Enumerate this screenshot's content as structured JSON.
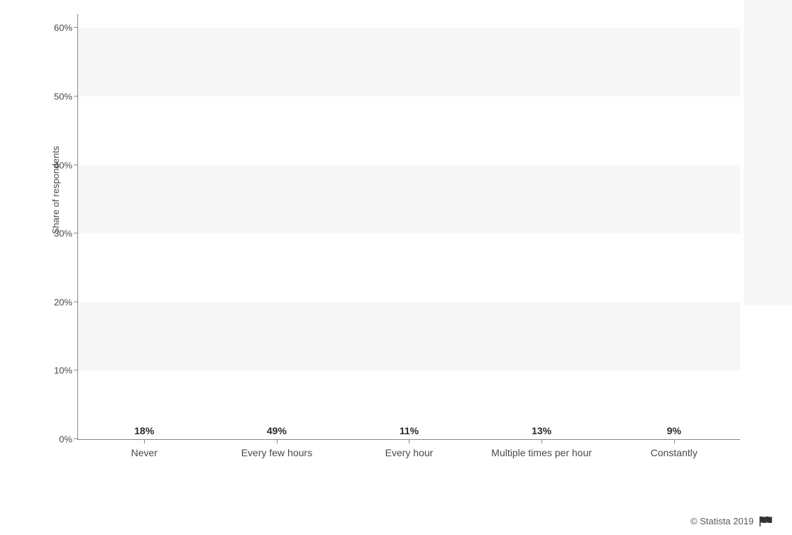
{
  "chart": {
    "type": "bar",
    "y_axis_label": "Share of respondents",
    "y_axis_label_fontsize": 13,
    "value_label_fontsize": 14,
    "x_label_fontsize": 14,
    "background_color": "#ffffff",
    "stripe_color": "#f7f7f7",
    "axis_color": "#888888",
    "text_color": "#4a4a4a",
    "value_text_color": "#2a2a2a",
    "ylim": [
      0,
      62
    ],
    "ytick_step": 10,
    "yticks": [
      "0%",
      "10%",
      "20%",
      "30%",
      "40%",
      "50%",
      "60%"
    ],
    "bar_color": "#2467d3",
    "bar_width_pct": 76,
    "categories": [
      "Never",
      "Every few hours",
      "Every hour",
      "Multiple times per hour",
      "Constantly"
    ],
    "values": [
      18,
      49,
      11,
      13,
      9
    ],
    "value_labels": [
      "18%",
      "49%",
      "11%",
      "13%",
      "9%"
    ]
  },
  "attribution": {
    "text": "© Statista 2019"
  }
}
